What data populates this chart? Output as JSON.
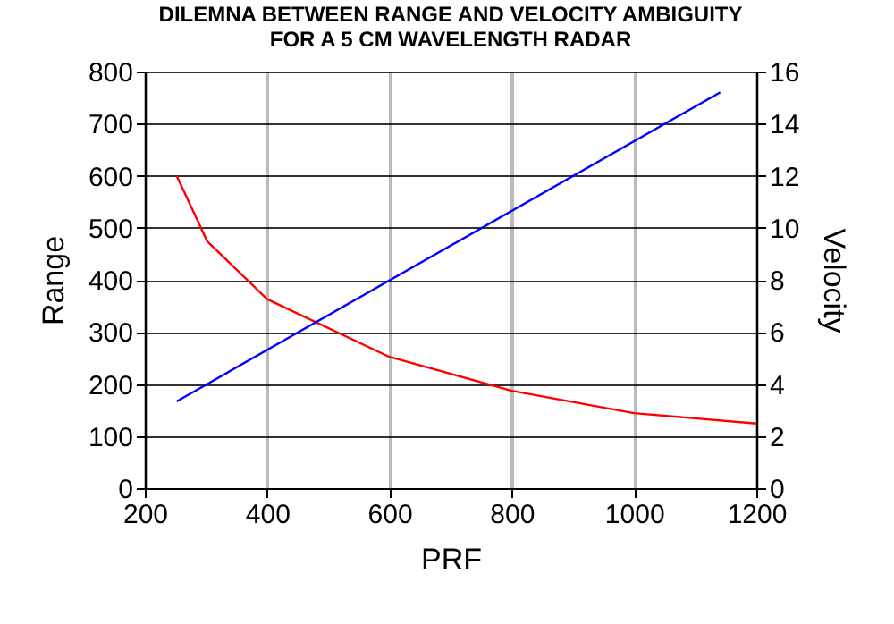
{
  "chart_data": {
    "type": "line",
    "title": "DILEMNA BETWEEN RANGE AND VELOCITY AMBIGUITY\nFOR A 5 CM WAVELENGTH RADAR",
    "xlabel": "PRF",
    "ylabel": "Range",
    "y2label": "Velocity",
    "xlim": [
      200,
      1200
    ],
    "xticks": [
      200,
      400,
      600,
      800,
      1000,
      1200
    ],
    "ylim": [
      0,
      800
    ],
    "yticks": [
      0,
      100,
      200,
      300,
      400,
      500,
      600,
      700,
      800
    ],
    "y2lim": [
      0,
      16
    ],
    "y2ticks": [
      0,
      2,
      4,
      6,
      8,
      10,
      12,
      14,
      16
    ],
    "grid": true,
    "series": [
      {
        "color": "#ff0000",
        "x": [
          252,
          302,
          400,
          600,
          800,
          1000,
          1200
        ],
        "values": [
          600,
          474,
          363,
          252,
          187,
          144,
          124
        ]
      },
      {
        "color": "#0000ff",
        "axis": "y2",
        "x": [
          252,
          1141
        ],
        "values": [
          3.33,
          15.2
        ]
      }
    ]
  }
}
